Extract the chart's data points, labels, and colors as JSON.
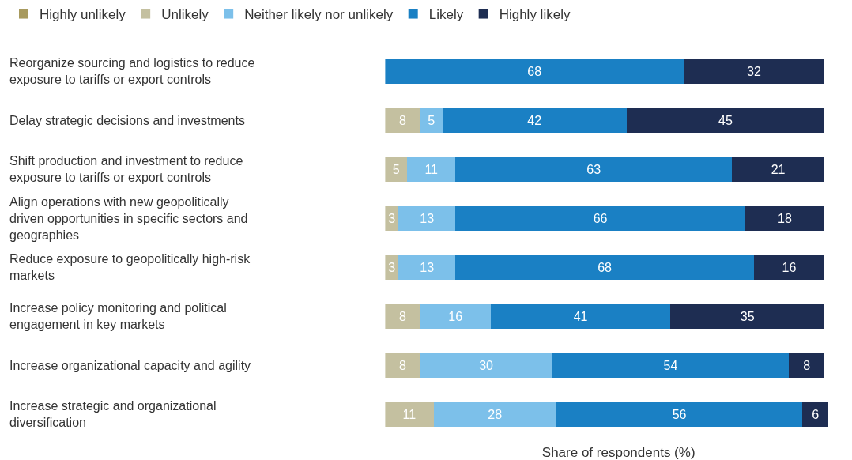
{
  "chart_data": {
    "type": "bar",
    "orientation": "horizontal",
    "stacked": true,
    "data_labels": true,
    "legend": "top left",
    "tick_labels": "y",
    "xlabel": "Share of respondents (%)",
    "categories": [
      "Reorganize sourcing and logistics to reduce exposure to tariffs or export controls",
      "Delay strategic decisions and investments",
      "Shift production and investment to reduce exposure to tariffs or export controls",
      "Align operations with new geopolitically driven opportunities in specific sectors and geographies",
      "Reduce exposure to geopolitically high-risk markets",
      "Increase policy monitoring and political engagement in key markets",
      "Increase organizational capacity and agility",
      "Increase strategic and organizational diversification"
    ],
    "series": [
      {
        "name": "Highly unlikely",
        "color": "#a89a5e",
        "values": [
          null,
          null,
          null,
          null,
          null,
          null,
          null,
          null
        ]
      },
      {
        "name": "Unlikely",
        "color": "#c4c0a0",
        "values": [
          null,
          8,
          5,
          3,
          3,
          8,
          8,
          11
        ]
      },
      {
        "name": "Neither likely nor unlikely",
        "color": "#7cc0ea",
        "values": [
          null,
          5,
          11,
          13,
          13,
          16,
          30,
          28
        ]
      },
      {
        "name": "Likely",
        "color": "#1a80c4",
        "values": [
          68,
          42,
          63,
          66,
          68,
          41,
          54,
          56
        ]
      },
      {
        "name": "Highly likely",
        "color": "#1e2d52",
        "values": [
          32,
          45,
          21,
          18,
          16,
          35,
          8,
          6
        ]
      }
    ]
  }
}
